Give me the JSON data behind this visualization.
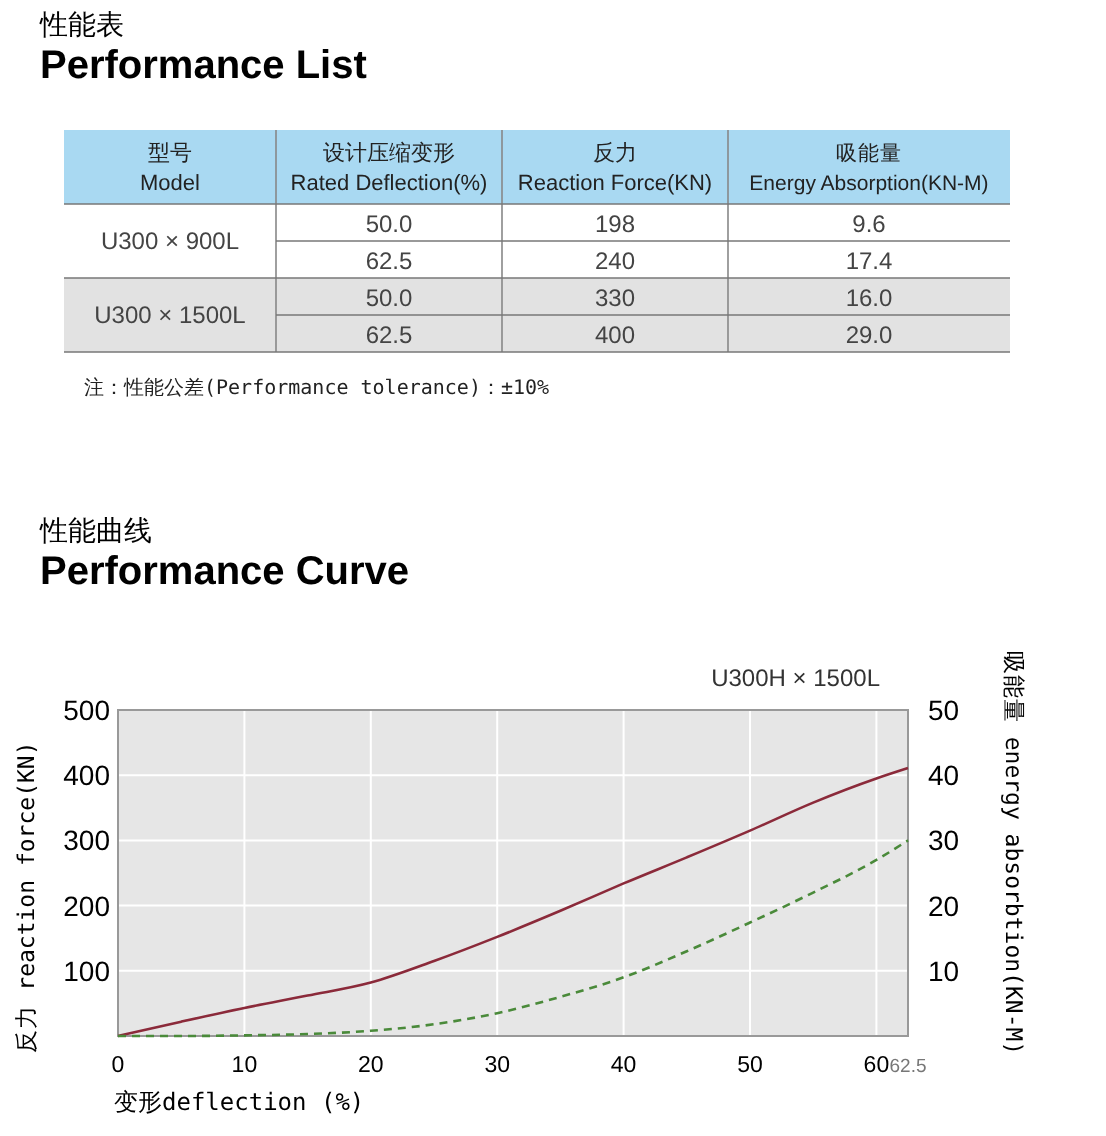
{
  "chart_data": [
    {
      "type": "other",
      "title": "性能表",
      "subtitle": "Performance List",
      "categories": [
        "型号\nModel",
        "设计压缩变形\nRated Deflection(%)",
        "反力\nReaction Force(KN)",
        "吸能量\nEnergy Absorption(KN-M)"
      ],
      "y_categories": [
        "U300 × 900L",
        "U300 × 1500L"
      ],
      "cell_labels": [
        [
          "50.0",
          "198",
          "9.6"
        ],
        [
          "62.5",
          "240",
          "17.4"
        ],
        [
          "50.0",
          "330",
          "16.0"
        ],
        [
          "62.5",
          "400",
          "29.0"
        ]
      ],
      "annotations": [
        "注：性能公差(Performance tolerance)：±10%"
      ]
    },
    {
      "type": "line",
      "title": "性能曲线",
      "subtitle": "Performance Curve",
      "annotations": [
        "U300H × 1500L"
      ],
      "xlabel": "变形deflection (%)",
      "ylabel": "反力 reaction force(KN)",
      "y2label": "吸能量 energy absorbtion(KN-M)",
      "x": [
        0,
        5,
        10,
        15,
        20,
        25,
        30,
        35,
        40,
        45,
        50,
        55,
        60,
        62.5
      ],
      "series": [
        {
          "color": "#8b2a3a",
          "line_style": "solid",
          "values": [
            0,
            22,
            43,
            62,
            82,
            115,
            152,
            192,
            234,
            274,
            315,
            358,
            395,
            411
          ]
        },
        {
          "color": "#4a8a3a",
          "line_style": "dashed",
          "axis": "y2",
          "values": [
            0,
            0,
            0.1,
            0.3,
            0.8,
            1.8,
            3.5,
            6,
            9,
            13,
            17.4,
            22,
            27,
            30
          ]
        }
      ],
      "xlim": [
        0,
        62.5
      ],
      "xticks": [
        0,
        10,
        20,
        30,
        40,
        50,
        60,
        62.5
      ],
      "ylim": [
        0,
        500
      ],
      "yticks": [
        100,
        200,
        300,
        400,
        500
      ],
      "y2lim": [
        0,
        50
      ],
      "y2ticks": [
        10,
        20,
        30,
        40,
        50
      ],
      "grid": true
    }
  ]
}
